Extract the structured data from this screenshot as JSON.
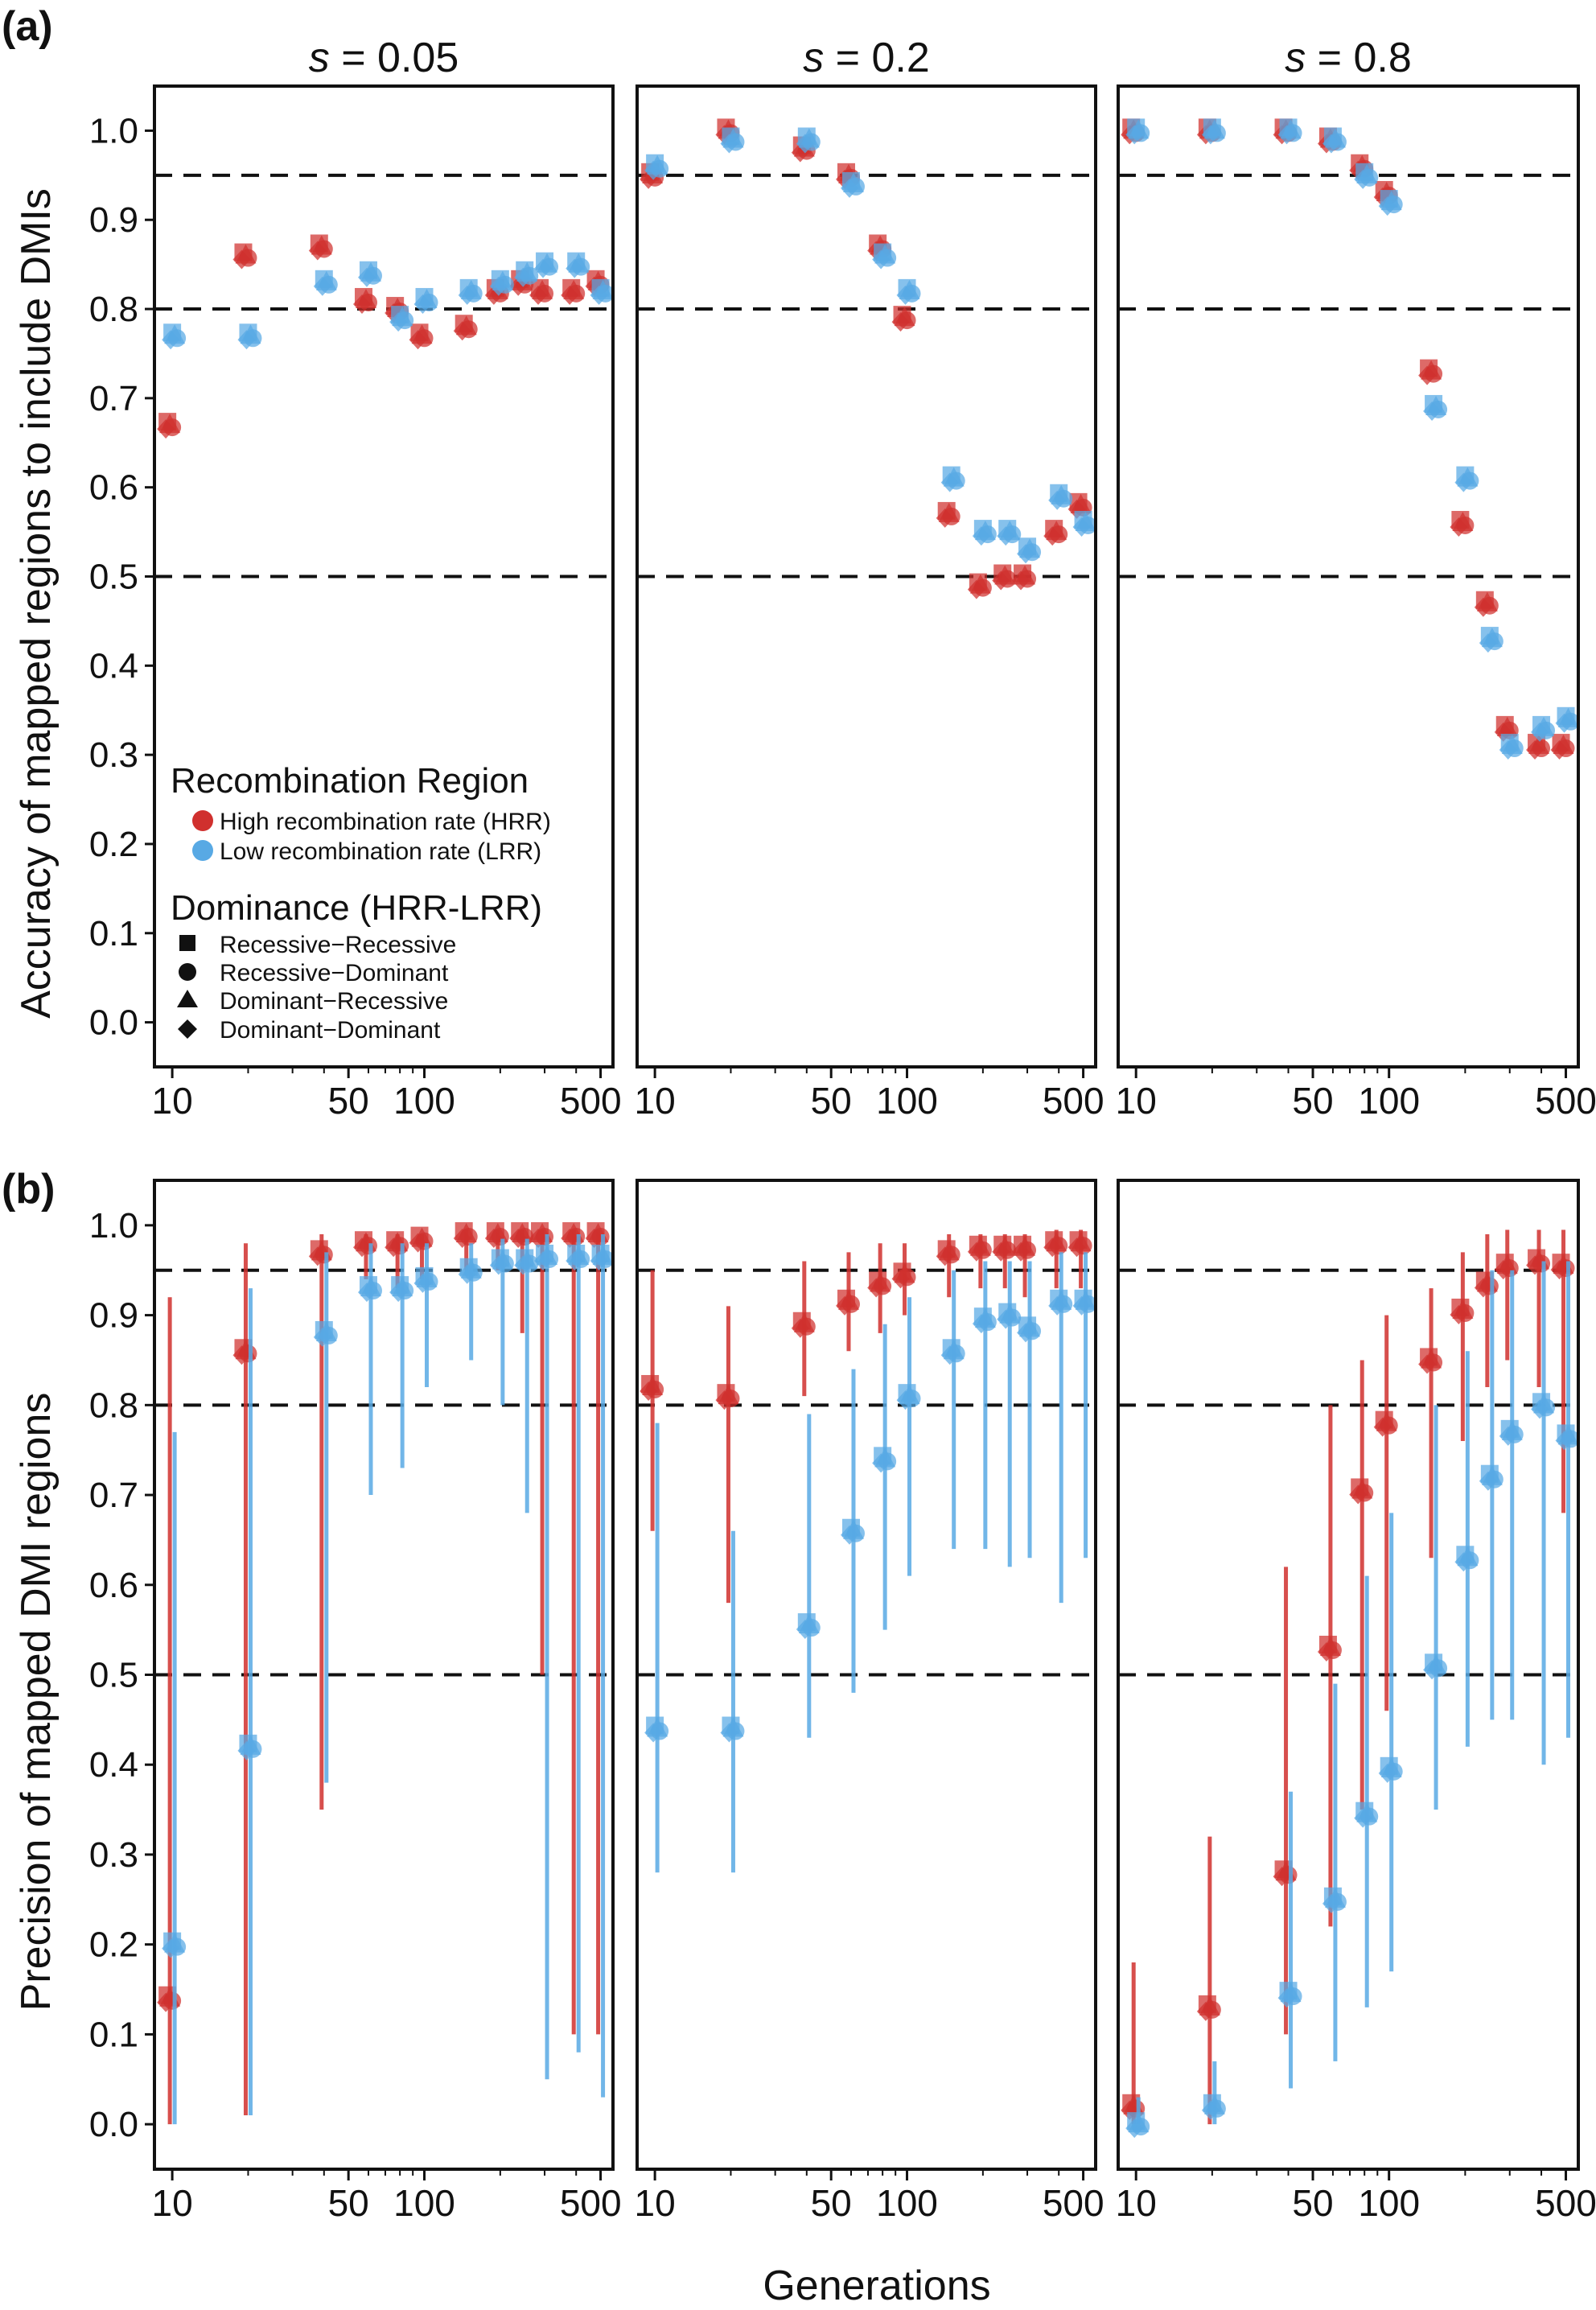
{
  "figure": {
    "panel_labels": [
      "(a)",
      "(b)"
    ],
    "xlabel": "Generations"
  },
  "legend": {
    "region_title": "Recombination Region",
    "regions": [
      {
        "name": "High recombination rate (HRR)",
        "color": "#d0302e"
      },
      {
        "name": "Low recombination rate (LRR)",
        "color": "#58a9e4"
      }
    ],
    "dominance_title": "Dominance (HRR-LRR)",
    "dominance": [
      {
        "name": "Recessive−Recessive",
        "shape": "square"
      },
      {
        "name": "Recessive−Dominant",
        "shape": "circle"
      },
      {
        "name": "Dominant−Recessive",
        "shape": "triangle"
      },
      {
        "name": "Dominant−Dominant",
        "shape": "diamond"
      }
    ]
  },
  "chart_data": [
    {
      "type": "scatter",
      "panel": "(a)",
      "ylabel": "Accuracy of mapped regions to include DMIs",
      "xlabel": "",
      "xscale": "log",
      "ylim": [
        -0.05,
        1.05
      ],
      "yticks": [
        "0.0",
        "0.1",
        "0.2",
        "0.3",
        "0.4",
        "0.5",
        "0.6",
        "0.7",
        "0.8",
        "0.9",
        "1.0"
      ],
      "reference_lines": [
        0.5,
        0.8,
        0.95
      ],
      "facets": [
        {
          "title": "s = 0.05",
          "xticks": [
            "10",
            "50",
            "100",
            "500"
          ],
          "series": [
            {
              "name": "HRR",
              "x": [
                10,
                20,
                40,
                60,
                80,
                100,
                150,
                200,
                250,
                300,
                400,
                500
              ],
              "values": [
                0.67,
                0.86,
                0.87,
                0.81,
                0.8,
                0.77,
                0.78,
                0.82,
                0.83,
                0.82,
                0.82,
                0.83
              ]
            },
            {
              "name": "LRR",
              "x": [
                10,
                20,
                40,
                60,
                80,
                100,
                150,
                200,
                250,
                300,
                400,
                500
              ],
              "values": [
                0.77,
                0.77,
                0.83,
                0.84,
                0.79,
                0.81,
                0.82,
                0.83,
                0.84,
                0.85,
                0.85,
                0.82
              ]
            }
          ]
        },
        {
          "title": "s = 0.2",
          "xticks": [
            "10",
            "50",
            "100",
            "500"
          ],
          "series": [
            {
              "name": "HRR",
              "x": [
                10,
                20,
                40,
                60,
                80,
                100,
                150,
                200,
                250,
                300,
                400,
                500
              ],
              "values": [
                0.95,
                1.0,
                0.98,
                0.95,
                0.87,
                0.79,
                0.57,
                0.49,
                0.5,
                0.5,
                0.55,
                0.58
              ]
            },
            {
              "name": "LRR",
              "x": [
                10,
                20,
                40,
                60,
                80,
                100,
                150,
                200,
                250,
                300,
                400,
                500
              ],
              "values": [
                0.96,
                0.99,
                0.99,
                0.94,
                0.86,
                0.82,
                0.61,
                0.55,
                0.55,
                0.53,
                0.59,
                0.56
              ]
            }
          ]
        },
        {
          "title": "s = 0.8",
          "xticks": [
            "10",
            "50",
            "100",
            "500"
          ],
          "series": [
            {
              "name": "HRR",
              "x": [
                10,
                20,
                40,
                60,
                80,
                100,
                150,
                200,
                250,
                300,
                400,
                500
              ],
              "values": [
                1.0,
                1.0,
                1.0,
                0.99,
                0.96,
                0.93,
                0.73,
                0.56,
                0.47,
                0.33,
                0.31,
                0.31
              ]
            },
            {
              "name": "LRR",
              "x": [
                10,
                20,
                40,
                60,
                80,
                100,
                150,
                200,
                250,
                300,
                400,
                500
              ],
              "values": [
                1.0,
                1.0,
                1.0,
                0.99,
                0.95,
                0.92,
                0.69,
                0.61,
                0.43,
                0.31,
                0.33,
                0.34
              ]
            }
          ]
        }
      ]
    },
    {
      "type": "scatter",
      "panel": "(b)",
      "ylabel": "Precision of mapped DMI regions",
      "xlabel": "Generations",
      "xscale": "log",
      "ylim": [
        -0.05,
        1.05
      ],
      "yticks": [
        "0.0",
        "0.1",
        "0.2",
        "0.3",
        "0.4",
        "0.5",
        "0.6",
        "0.7",
        "0.8",
        "0.9",
        "1.0"
      ],
      "reference_lines": [
        0.5,
        0.8,
        0.95
      ],
      "error_bars": true,
      "facets": [
        {
          "title": "",
          "xticks": [
            "10",
            "50",
            "100",
            "500"
          ],
          "series": [
            {
              "name": "HRR",
              "x": [
                10,
                20,
                40,
                60,
                80,
                100,
                150,
                200,
                250,
                300,
                400,
                500
              ],
              "values": [
                0.14,
                0.86,
                0.97,
                0.98,
                0.98,
                0.985,
                0.99,
                0.99,
                0.99,
                0.99,
                0.99,
                0.99
              ],
              "lower": [
                0.0,
                0.01,
                0.35,
                0.94,
                0.93,
                0.94,
                0.95,
                0.95,
                0.88,
                0.5,
                0.1,
                0.1
              ],
              "upper": [
                0.92,
                0.98,
                0.99,
                0.99,
                0.99,
                0.99,
                0.995,
                0.995,
                0.995,
                0.995,
                0.995,
                0.995
              ]
            },
            {
              "name": "LRR",
              "x": [
                10,
                20,
                40,
                60,
                80,
                100,
                150,
                200,
                250,
                300,
                400,
                500
              ],
              "values": [
                0.2,
                0.42,
                0.88,
                0.93,
                0.93,
                0.94,
                0.95,
                0.96,
                0.96,
                0.965,
                0.965,
                0.965
              ],
              "lower": [
                0.0,
                0.01,
                0.38,
                0.7,
                0.73,
                0.82,
                0.85,
                0.8,
                0.68,
                0.05,
                0.08,
                0.03
              ],
              "upper": [
                0.77,
                0.93,
                0.97,
                0.98,
                0.98,
                0.98,
                0.98,
                0.985,
                0.985,
                0.99,
                0.99,
                0.99
              ]
            }
          ]
        },
        {
          "title": "",
          "xticks": [
            "10",
            "50",
            "100",
            "500"
          ],
          "series": [
            {
              "name": "HRR",
              "x": [
                10,
                20,
                40,
                60,
                80,
                100,
                150,
                200,
                250,
                300,
                400,
                500
              ],
              "values": [
                0.82,
                0.81,
                0.89,
                0.915,
                0.935,
                0.945,
                0.97,
                0.975,
                0.975,
                0.975,
                0.98,
                0.98
              ],
              "lower": [
                0.66,
                0.58,
                0.81,
                0.86,
                0.88,
                0.9,
                0.92,
                0.93,
                0.93,
                0.92,
                0.93,
                0.93
              ],
              "upper": [
                0.95,
                0.91,
                0.96,
                0.97,
                0.98,
                0.98,
                0.99,
                0.99,
                0.99,
                0.99,
                0.995,
                0.995
              ]
            },
            {
              "name": "LRR",
              "x": [
                10,
                20,
                40,
                60,
                80,
                100,
                150,
                200,
                250,
                300,
                400,
                500
              ],
              "values": [
                0.44,
                0.44,
                0.555,
                0.66,
                0.74,
                0.81,
                0.86,
                0.895,
                0.9,
                0.885,
                0.915,
                0.915
              ],
              "lower": [
                0.28,
                0.28,
                0.43,
                0.48,
                0.55,
                0.61,
                0.64,
                0.64,
                0.62,
                0.63,
                0.58,
                0.63
              ],
              "upper": [
                0.78,
                0.66,
                0.79,
                0.84,
                0.89,
                0.92,
                0.95,
                0.96,
                0.96,
                0.96,
                0.97,
                0.97
              ]
            }
          ]
        },
        {
          "title": "",
          "xticks": [
            "10",
            "50",
            "100",
            "500"
          ],
          "series": [
            {
              "name": "HRR",
              "x": [
                10,
                20,
                40,
                60,
                80,
                100,
                150,
                200,
                250,
                300,
                400,
                500
              ],
              "values": [
                0.02,
                0.13,
                0.28,
                0.53,
                0.705,
                0.78,
                0.85,
                0.905,
                0.935,
                0.955,
                0.96,
                0.955
              ],
              "lower": [
                0.0,
                0.0,
                0.1,
                0.22,
                0.35,
                0.46,
                0.63,
                0.76,
                0.82,
                0.85,
                0.82,
                0.68
              ],
              "upper": [
                0.18,
                0.32,
                0.62,
                0.8,
                0.85,
                0.9,
                0.93,
                0.97,
                0.99,
                0.995,
                0.995,
                0.995
              ]
            },
            {
              "name": "LRR",
              "x": [
                10,
                20,
                40,
                60,
                80,
                100,
                150,
                200,
                250,
                300,
                400,
                500
              ],
              "values": [
                0.0,
                0.02,
                0.145,
                0.25,
                0.345,
                0.395,
                0.51,
                0.63,
                0.72,
                0.77,
                0.8,
                0.765
              ],
              "lower": [
                0.0,
                0.0,
                0.04,
                0.07,
                0.13,
                0.17,
                0.35,
                0.42,
                0.45,
                0.45,
                0.4,
                0.43
              ],
              "upper": [
                0.03,
                0.07,
                0.37,
                0.49,
                0.61,
                0.68,
                0.8,
                0.86,
                0.95,
                0.95,
                0.96,
                0.96
              ]
            }
          ]
        }
      ]
    }
  ]
}
